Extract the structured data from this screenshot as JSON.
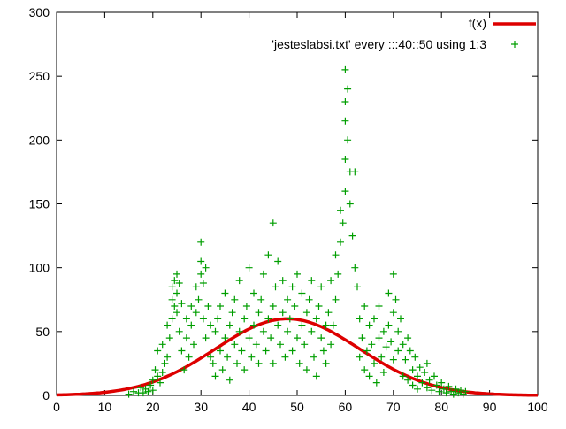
{
  "chart_data": {
    "type": "scatter",
    "title": "",
    "xlabel": "",
    "ylabel": "",
    "xlim": [
      0,
      100
    ],
    "ylim": [
      0,
      300
    ],
    "xticks": [
      0,
      10,
      20,
      30,
      40,
      50,
      60,
      70,
      80,
      90,
      100
    ],
    "yticks": [
      0,
      50,
      100,
      150,
      200,
      250,
      300
    ],
    "grid": false,
    "legend_position": "top-right-inside",
    "series": [
      {
        "name": "f(x)",
        "type": "line",
        "color": "#dd0000",
        "line_width": 3.5,
        "function": "gaussian",
        "amplitude": 60,
        "mean": 48,
        "sigma": 15
      },
      {
        "name": "'jesteslabsi.txt' every :::40::50 using 1:3",
        "type": "points",
        "marker": "plus",
        "color": "#009e00",
        "marker_size": 4,
        "points": [
          [
            15,
            1
          ],
          [
            16,
            3
          ],
          [
            17,
            2
          ],
          [
            17.5,
            6
          ],
          [
            18,
            2
          ],
          [
            18.5,
            5
          ],
          [
            19,
            3
          ],
          [
            19.5,
            8
          ],
          [
            20,
            4
          ],
          [
            20,
            12
          ],
          [
            20.5,
            20
          ],
          [
            21,
            15
          ],
          [
            21,
            35
          ],
          [
            21.5,
            10
          ],
          [
            22,
            18
          ],
          [
            22,
            40
          ],
          [
            22.5,
            25
          ],
          [
            23,
            30
          ],
          [
            23,
            55
          ],
          [
            23.5,
            45
          ],
          [
            24,
            60
          ],
          [
            24,
            75
          ],
          [
            24,
            85
          ],
          [
            24.5,
            90
          ],
          [
            24.5,
            70
          ],
          [
            25,
            95
          ],
          [
            25,
            80
          ],
          [
            25,
            65
          ],
          [
            25.5,
            88
          ],
          [
            25.5,
            50
          ],
          [
            26,
            72
          ],
          [
            26,
            35
          ],
          [
            26.5,
            20
          ],
          [
            27,
            45
          ],
          [
            27,
            60
          ],
          [
            27.5,
            30
          ],
          [
            28,
            55
          ],
          [
            28,
            70
          ],
          [
            28.5,
            40
          ],
          [
            29,
            65
          ],
          [
            29,
            85
          ],
          [
            29.5,
            75
          ],
          [
            30,
            95
          ],
          [
            30,
            105
          ],
          [
            30,
            120
          ],
          [
            30.5,
            88
          ],
          [
            30.5,
            60
          ],
          [
            31,
            100
          ],
          [
            31,
            45
          ],
          [
            31.5,
            70
          ],
          [
            32,
            55
          ],
          [
            32,
            30
          ],
          [
            32.5,
            25
          ],
          [
            33,
            50
          ],
          [
            33,
            15
          ],
          [
            33.5,
            60
          ],
          [
            34,
            35
          ],
          [
            34,
            70
          ],
          [
            34.5,
            20
          ],
          [
            35,
            45
          ],
          [
            35,
            80
          ],
          [
            35.5,
            30
          ],
          [
            36,
            55
          ],
          [
            36,
            12
          ],
          [
            36.5,
            65
          ],
          [
            37,
            40
          ],
          [
            37,
            75
          ],
          [
            37.5,
            25
          ],
          [
            38,
            50
          ],
          [
            38,
            90
          ],
          [
            38.5,
            35
          ],
          [
            39,
            60
          ],
          [
            39,
            20
          ],
          [
            39.5,
            70
          ],
          [
            40,
            45
          ],
          [
            40,
            100
          ],
          [
            40.5,
            30
          ],
          [
            41,
            55
          ],
          [
            41,
            80
          ],
          [
            41.5,
            40
          ],
          [
            42,
            65
          ],
          [
            42,
            25
          ],
          [
            42.5,
            75
          ],
          [
            43,
            50
          ],
          [
            43,
            95
          ],
          [
            43.5,
            35
          ],
          [
            44,
            60
          ],
          [
            44,
            110
          ],
          [
            44.5,
            45
          ],
          [
            45,
            70
          ],
          [
            45,
            135
          ],
          [
            45,
            25
          ],
          [
            45.5,
            85
          ],
          [
            46,
            55
          ],
          [
            46,
            105
          ],
          [
            46.5,
            40
          ],
          [
            47,
            65
          ],
          [
            47,
            90
          ],
          [
            47.5,
            30
          ],
          [
            48,
            75
          ],
          [
            48,
            50
          ],
          [
            48.5,
            60
          ],
          [
            49,
            85
          ],
          [
            49,
            35
          ],
          [
            49.5,
            70
          ],
          [
            50,
            45
          ],
          [
            50,
            95
          ],
          [
            50.5,
            25
          ],
          [
            51,
            55
          ],
          [
            51,
            80
          ],
          [
            51.5,
            40
          ],
          [
            52,
            65
          ],
          [
            52,
            20
          ],
          [
            52.5,
            75
          ],
          [
            53,
            50
          ],
          [
            53,
            90
          ],
          [
            53.5,
            30
          ],
          [
            54,
            60
          ],
          [
            54,
            15
          ],
          [
            54.5,
            70
          ],
          [
            55,
            45
          ],
          [
            55,
            85
          ],
          [
            55.5,
            35
          ],
          [
            56,
            55
          ],
          [
            56,
            25
          ],
          [
            56.5,
            65
          ],
          [
            57,
            40
          ],
          [
            57,
            90
          ],
          [
            57.5,
            55
          ],
          [
            58,
            75
          ],
          [
            58,
            110
          ],
          [
            58.5,
            95
          ],
          [
            59,
            120
          ],
          [
            59,
            145
          ],
          [
            59.5,
            135
          ],
          [
            60,
            160
          ],
          [
            60,
            185
          ],
          [
            60,
            215
          ],
          [
            60,
            230
          ],
          [
            60,
            255
          ],
          [
            60.5,
            240
          ],
          [
            60.5,
            200
          ],
          [
            61,
            175
          ],
          [
            61,
            150
          ],
          [
            61.5,
            125
          ],
          [
            62,
            100
          ],
          [
            62,
            175
          ],
          [
            62.5,
            85
          ],
          [
            63,
            60
          ],
          [
            63,
            30
          ],
          [
            63.5,
            45
          ],
          [
            64,
            20
          ],
          [
            64,
            70
          ],
          [
            64.5,
            35
          ],
          [
            65,
            55
          ],
          [
            65,
            15
          ],
          [
            65.5,
            40
          ],
          [
            66,
            25
          ],
          [
            66,
            60
          ],
          [
            66.5,
            10
          ],
          [
            67,
            45
          ],
          [
            67,
            70
          ],
          [
            67.5,
            30
          ],
          [
            68,
            50
          ],
          [
            68,
            18
          ],
          [
            68.5,
            38
          ],
          [
            69,
            55
          ],
          [
            69,
            80
          ],
          [
            69.5,
            42
          ],
          [
            70,
            65
          ],
          [
            70,
            95
          ],
          [
            70,
            28
          ],
          [
            70.5,
            75
          ],
          [
            71,
            50
          ],
          [
            71,
            35
          ],
          [
            71.5,
            60
          ],
          [
            72,
            40
          ],
          [
            72,
            15
          ],
          [
            72.5,
            28
          ],
          [
            73,
            45
          ],
          [
            73,
            12
          ],
          [
            73.5,
            35
          ],
          [
            74,
            20
          ],
          [
            74,
            8
          ],
          [
            74.5,
            30
          ],
          [
            75,
            15
          ],
          [
            75,
            5
          ],
          [
            75.5,
            22
          ],
          [
            76,
            10
          ],
          [
            76.5,
            18
          ],
          [
            77,
            6
          ],
          [
            77,
            25
          ],
          [
            77.5,
            12
          ],
          [
            78,
            4
          ],
          [
            78.5,
            15
          ],
          [
            79,
            8
          ],
          [
            79.5,
            3
          ],
          [
            80,
            10
          ],
          [
            80.5,
            5
          ],
          [
            81,
            2
          ],
          [
            81.5,
            7
          ],
          [
            82,
            3
          ],
          [
            82.5,
            1
          ],
          [
            83,
            5
          ],
          [
            83.5,
            2
          ],
          [
            84,
            4
          ],
          [
            84.5,
            1
          ],
          [
            85,
            3
          ]
        ]
      }
    ]
  },
  "colors": {
    "background": "#ffffff",
    "axis": "#000000",
    "curve_red": "#dd0000",
    "points_green": "#009e00"
  }
}
